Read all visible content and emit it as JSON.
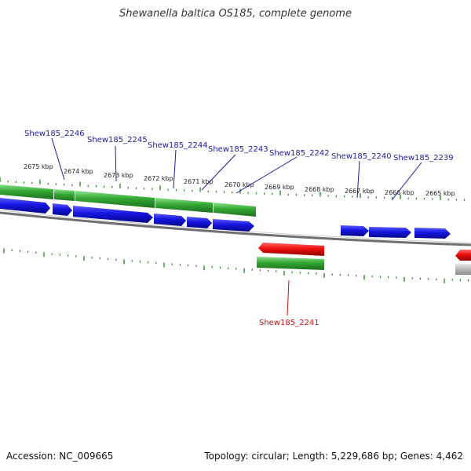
{
  "title": "Shewanella baltica OS185, complete genome",
  "accession_label": "Accession: NC_009665",
  "summary_label": "Topology: circular; Length: 5,229,686 bp; Genes: 4,462",
  "colors": {
    "forward_cds": "#1515e0",
    "reverse_cds": "#ee0f0f",
    "gene_track": "#33a833",
    "ticks": "#2e8b2e",
    "backbone": "#7a7a7a",
    "fwd_label": "#1a1aa8",
    "rev_label": "#cc1111",
    "other_feature": "#b8b8b8"
  },
  "kbp_labels": [
    "2675 kbp",
    "2674 kbp",
    "2673 kbp",
    "2672 kbp",
    "2671 kbp",
    "2670 kbp",
    "2669 kbp",
    "2668 kbp",
    "2667 kbp",
    "2666 kbp",
    "2665 kbp"
  ],
  "forward_gene_labels": [
    "Shew185_2246",
    "Shew185_2245",
    "Shew185_2244",
    "Shew185_2243",
    "Shew185_2242",
    "Shew185_2240",
    "Shew185_2239"
  ],
  "reverse_gene_labels": [
    "Shew185_2241"
  ]
}
